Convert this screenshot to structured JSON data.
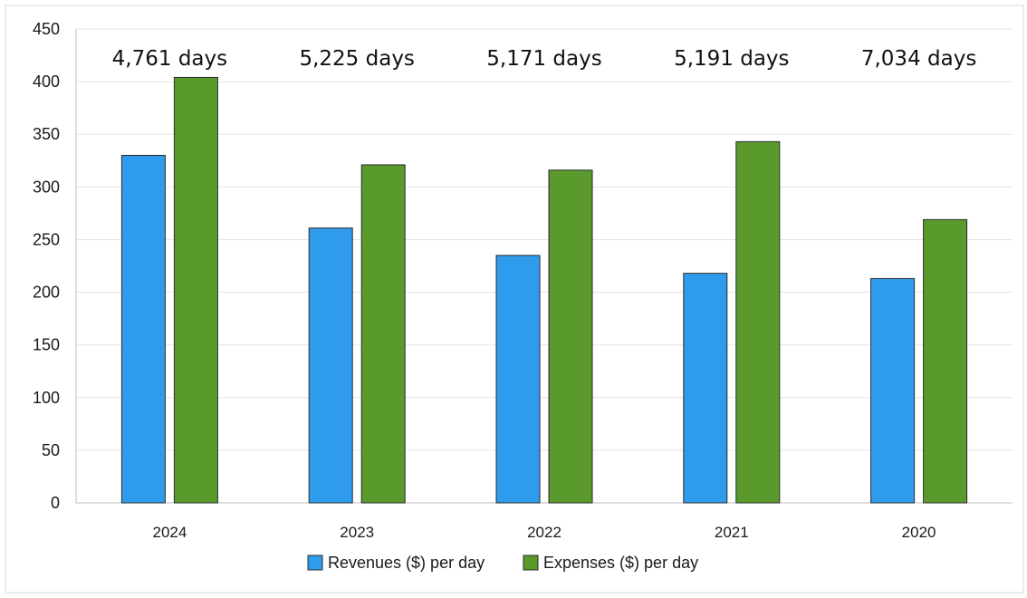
{
  "chart_data": {
    "type": "bar",
    "categories": [
      "2024",
      "2023",
      "2022",
      "2021",
      "2020"
    ],
    "series": [
      {
        "name": "Revenues ($) per day",
        "color": "#2f9bec",
        "values": [
          330,
          261,
          235,
          218,
          213
        ]
      },
      {
        "name": "Expenses ($) per day",
        "color": "#5a9a2c",
        "values": [
          404,
          321,
          316,
          343,
          269
        ]
      }
    ],
    "annotations": [
      "4,761 days",
      "5,225 days",
      "5,171 days",
      "5,191 days",
      "7,034 days"
    ],
    "ylim": [
      0,
      450
    ],
    "yticks": [
      0,
      50,
      100,
      150,
      200,
      250,
      300,
      350,
      400,
      450
    ],
    "grid": true,
    "legend_position": "bottom-center"
  }
}
